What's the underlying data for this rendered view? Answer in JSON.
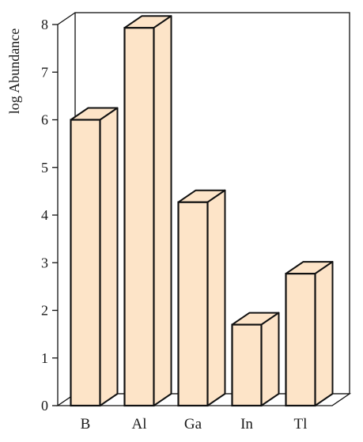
{
  "chart_data": {
    "type": "bar",
    "style": "3d",
    "categories": [
      "B",
      "Al",
      "Ga",
      "In",
      "Tl"
    ],
    "values": [
      6.0,
      7.93,
      4.27,
      1.7,
      2.77
    ],
    "title": "",
    "xlabel": "",
    "ylabel": "log Abundance",
    "ylim": [
      0,
      8
    ],
    "yticks": [
      "0",
      "1",
      "2",
      "3",
      "4",
      "5",
      "6",
      "7",
      "8"
    ],
    "grid": false,
    "colors": {
      "bar_fill": "#fde4c8",
      "bar_outline": "#111111",
      "axis": "#111111"
    }
  }
}
